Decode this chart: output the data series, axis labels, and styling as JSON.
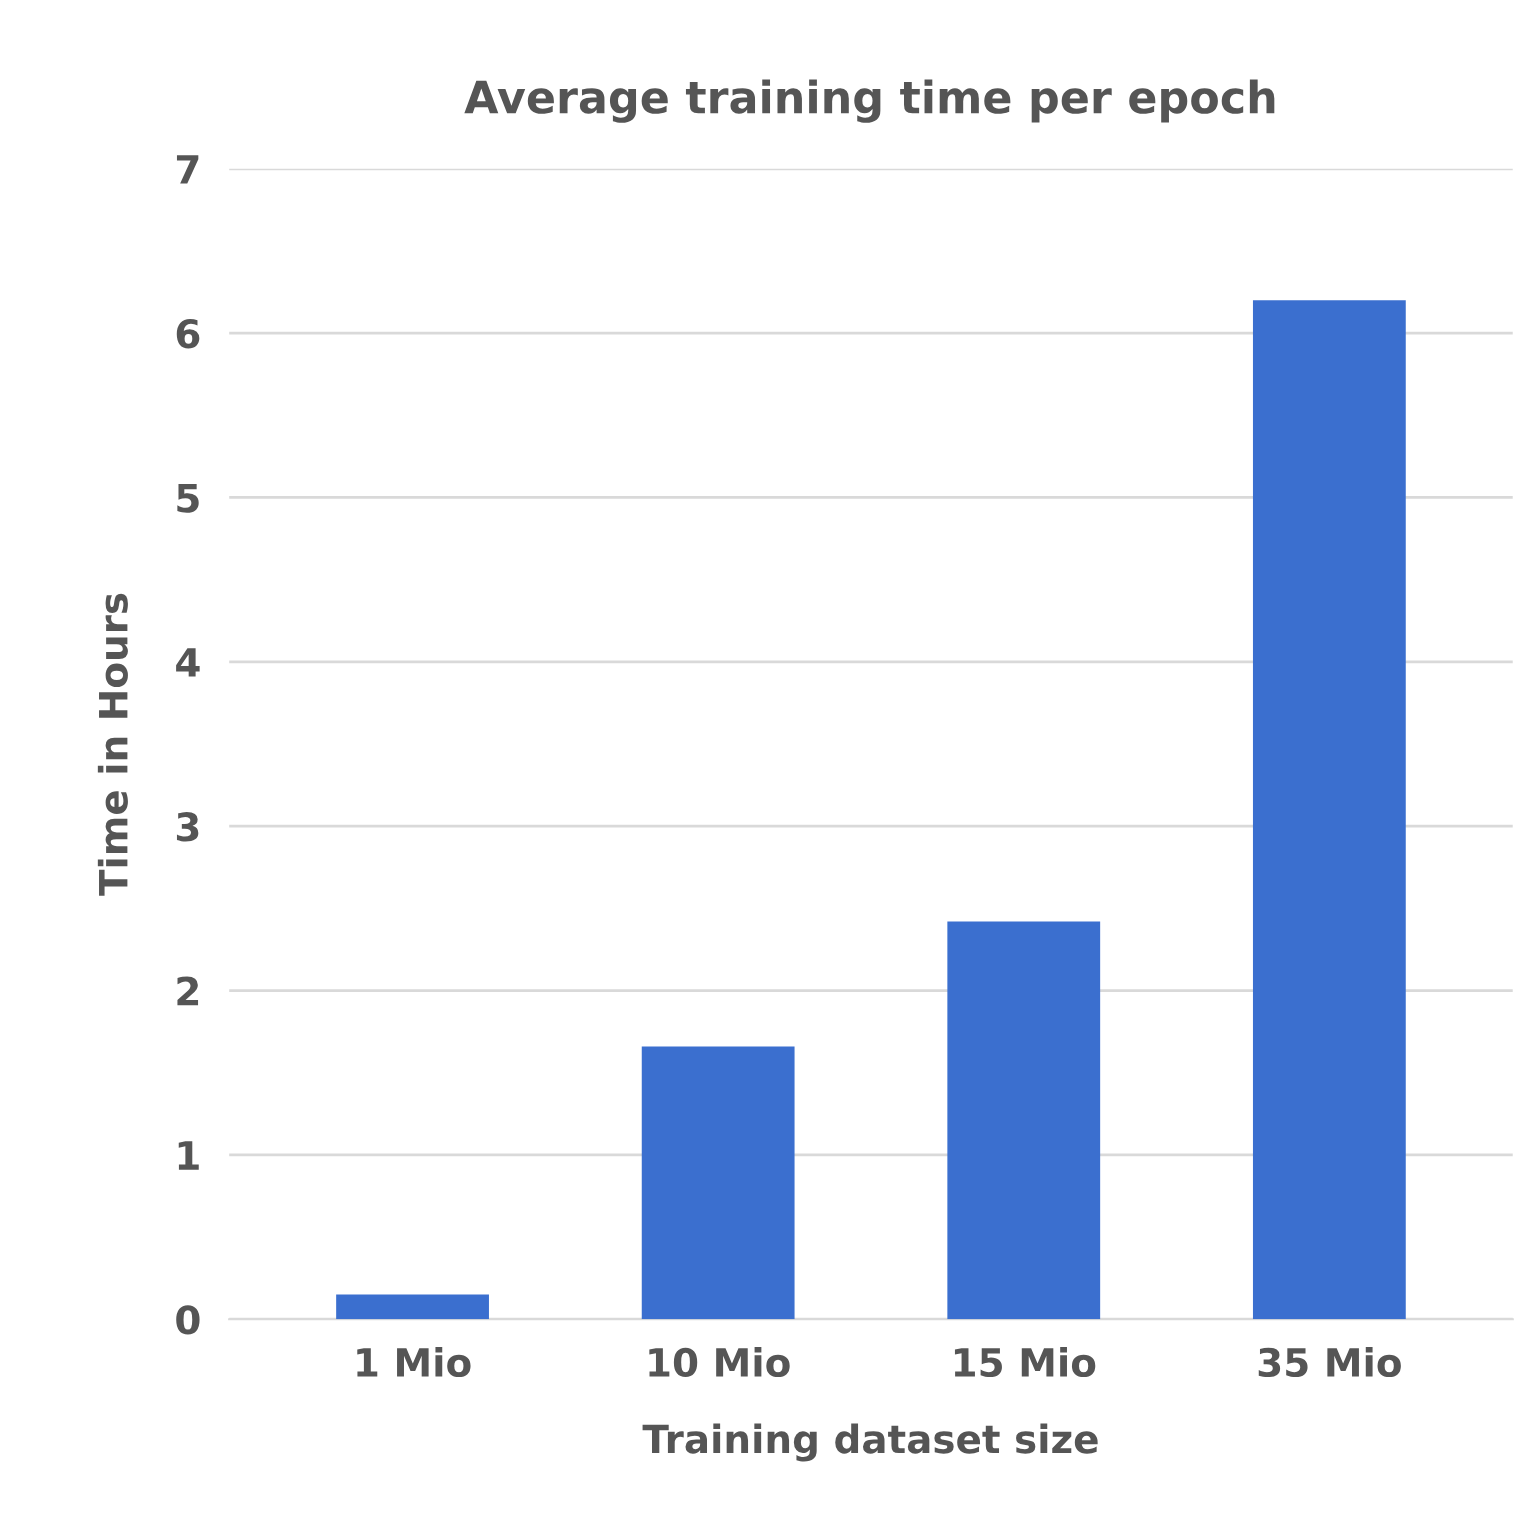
{
  "chart_data": {
    "type": "bar",
    "title": "Average training time per epoch",
    "xlabel": "Training dataset size",
    "ylabel": "Time in Hours",
    "categories": [
      "1 Mio",
      "10 Mio",
      "15 Mio",
      "35 Mio"
    ],
    "values": [
      0.15,
      1.66,
      2.42,
      6.2
    ],
    "color": "#3b6fcf",
    "ylim": [
      0,
      7
    ],
    "yticks": [
      0,
      1,
      2,
      3,
      4,
      5,
      6,
      7
    ],
    "grid": "y"
  }
}
